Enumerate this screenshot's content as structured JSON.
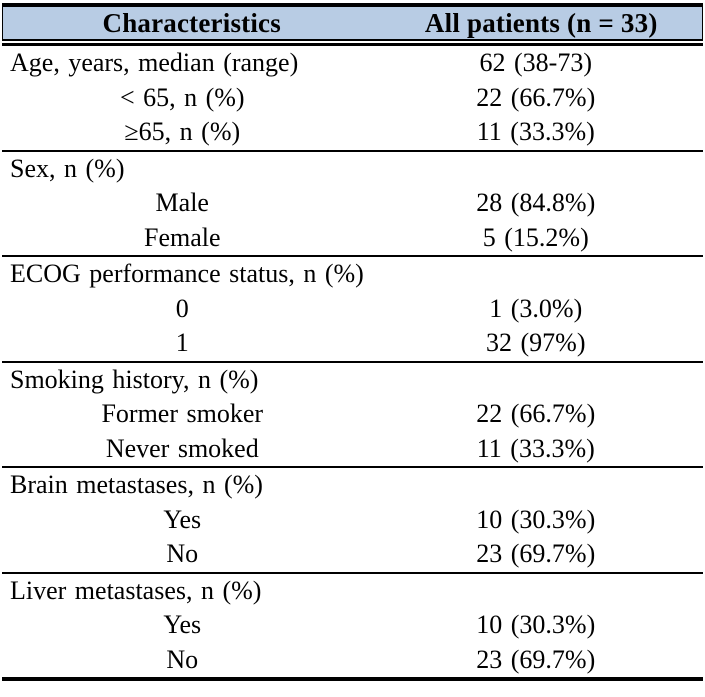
{
  "colors": {
    "header_bg": "#B8CCE4",
    "border": "#000000",
    "text": "#000000"
  },
  "table": {
    "header": {
      "col1": "Characteristics",
      "col2": "All patients (n = 33)"
    },
    "sections": [
      {
        "rows": [
          {
            "label": "Age, years, median (range)",
            "value": "62 (38-73)"
          },
          {
            "label": "< 65, n (%)",
            "value": "22 (66.7%)"
          },
          {
            "label": "≥65, n (%)",
            "value": "11 (33.3%)"
          }
        ]
      },
      {
        "rows": [
          {
            "label": "Sex, n (%)",
            "value": ""
          },
          {
            "label": "Male",
            "value": "28 (84.8%)"
          },
          {
            "label": "Female",
            "value": "5 (15.2%)"
          }
        ]
      },
      {
        "rows": [
          {
            "label": "ECOG performance status, n (%)",
            "value": ""
          },
          {
            "label": "0",
            "value": "1 (3.0%)"
          },
          {
            "label": "1",
            "value": "32 (97%)"
          }
        ]
      },
      {
        "rows": [
          {
            "label": "Smoking history, n (%)",
            "value": ""
          },
          {
            "label": "Former smoker",
            "value": "22 (66.7%)"
          },
          {
            "label": "Never smoked",
            "value": "11 (33.3%)"
          }
        ]
      },
      {
        "rows": [
          {
            "label": "Brain metastases, n (%)",
            "value": ""
          },
          {
            "label": "Yes",
            "value": "10 (30.3%)"
          },
          {
            "label": "No",
            "value": "23 (69.7%)"
          }
        ]
      },
      {
        "rows": [
          {
            "label": "Liver metastases, n (%)",
            "value": ""
          },
          {
            "label": "Yes",
            "value": "10 (30.3%)"
          },
          {
            "label": "No",
            "value": "23 (69.7%)"
          }
        ]
      }
    ]
  }
}
